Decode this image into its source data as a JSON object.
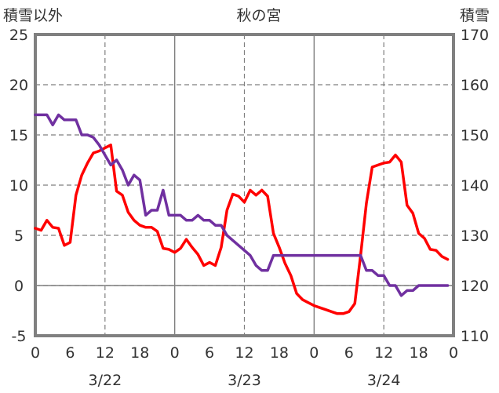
{
  "chart_data": {
    "type": "line",
    "title": "秋の宮",
    "y_left_label": "積雪以外",
    "y_right_label": "積雪",
    "y_left_range": [
      -5,
      25
    ],
    "y_left_ticks": [
      "-5",
      "0",
      "5",
      "10",
      "15",
      "20",
      "25"
    ],
    "y_right_range": [
      110,
      170
    ],
    "y_right_ticks": [
      "110",
      "120",
      "130",
      "140",
      "150",
      "160",
      "170"
    ],
    "x_hour_ticks": [
      "0",
      "6",
      "12",
      "18",
      "0",
      "6",
      "12",
      "18",
      "0",
      "6",
      "12",
      "18",
      "0"
    ],
    "date_labels": [
      "3/22",
      "3/23",
      "3/24"
    ],
    "grid": true,
    "series": [
      {
        "axis": "left",
        "color": "#ff0000",
        "values": [
          5.7,
          5.5,
          6.5,
          5.8,
          5.7,
          4.0,
          4.3,
          9.0,
          11.0,
          12.2,
          13.2,
          13.4,
          13.7,
          14.0,
          9.4,
          9.0,
          7.3,
          6.5,
          6.0,
          5.8,
          5.8,
          5.4,
          3.7,
          3.6,
          3.3,
          3.7,
          4.6,
          3.8,
          3.1,
          2.0,
          2.3,
          2.0,
          3.8,
          7.5,
          9.1,
          8.9,
          8.3,
          9.5,
          9.0,
          9.5,
          8.9,
          5.2,
          3.8,
          2.2,
          1.0,
          -0.8,
          -1.4,
          -1.7,
          -2.0,
          -2.2,
          -2.4,
          -2.6,
          -2.8,
          -2.8,
          -2.6,
          -1.8,
          3.0,
          8.2,
          11.8,
          12.0,
          12.2,
          12.3,
          13.0,
          12.3,
          8.0,
          7.2,
          5.2,
          4.7,
          3.6,
          3.5,
          2.9,
          2.6
        ]
      },
      {
        "axis": "right",
        "color": "#7030a0",
        "values": [
          154,
          154,
          154,
          152,
          154,
          153,
          153,
          153,
          150,
          150,
          149.5,
          148,
          146,
          144,
          145,
          143,
          140,
          142,
          141,
          134,
          135,
          135,
          139,
          134,
          134,
          134,
          133,
          133,
          134,
          133,
          133,
          132,
          132,
          130,
          129,
          128,
          127,
          126,
          124,
          123,
          123,
          126,
          126,
          126,
          126,
          126,
          126,
          126,
          126,
          126,
          126,
          126,
          126,
          126,
          126,
          126,
          126,
          123,
          123,
          122,
          122,
          120,
          120,
          118,
          119,
          119,
          120,
          120,
          120,
          120,
          120,
          120
        ]
      }
    ]
  }
}
